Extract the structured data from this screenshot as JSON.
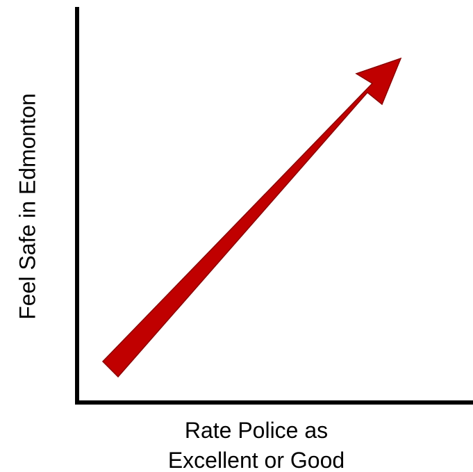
{
  "diagram": {
    "y_axis_label": "Feel Safe in Edmonton",
    "x_axis_label_line1": "Rate Police as",
    "x_axis_label_line2": "Excellent or Good"
  },
  "colors": {
    "arrow_fill": "#c00000",
    "arrow_stroke": "#8b0000",
    "axis": "#000000",
    "background": "#ffffff"
  },
  "icons": {
    "trend_arrow": "diagonal-up-right-arrow"
  }
}
